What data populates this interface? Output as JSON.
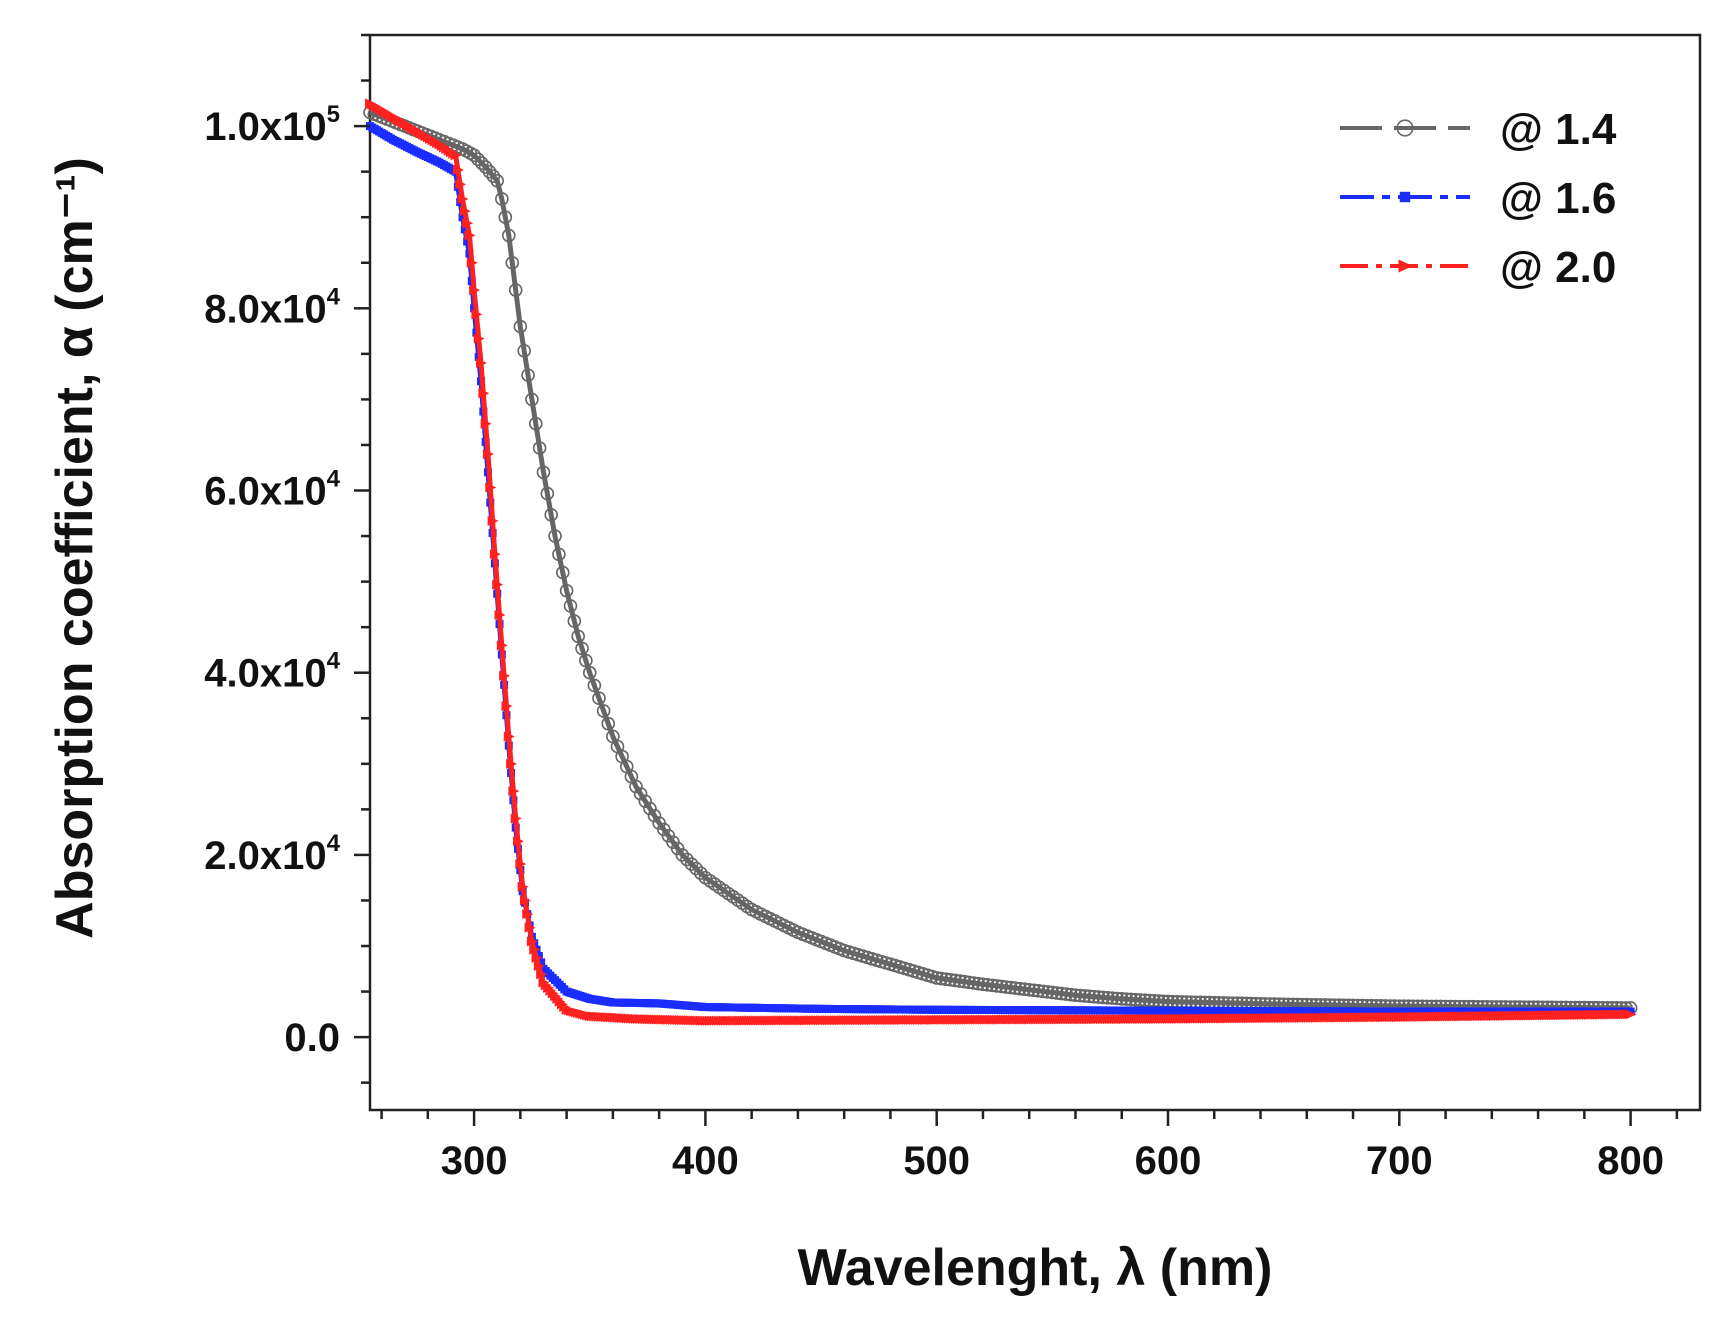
{
  "chart_data": {
    "type": "line",
    "title": "",
    "xlabel": "Wavelenght, λ (nm)",
    "ylabel": "Absorption coefficient, α (cm⁻¹)",
    "xlim": [
      255,
      830
    ],
    "ylim": [
      -8000,
      110000
    ],
    "x_ticks": [
      {
        "value": 300,
        "label": "300"
      },
      {
        "value": 400,
        "label": "400"
      },
      {
        "value": 500,
        "label": "500"
      },
      {
        "value": 600,
        "label": "600"
      },
      {
        "value": 700,
        "label": "700"
      },
      {
        "value": 800,
        "label": "800"
      }
    ],
    "y_ticks": [
      {
        "value": 0,
        "mantissa": "0.0",
        "exponent": ""
      },
      {
        "value": 20000,
        "mantissa": "2.0x10",
        "exponent": "4"
      },
      {
        "value": 40000,
        "mantissa": "4.0x10",
        "exponent": "4"
      },
      {
        "value": 60000,
        "mantissa": "6.0x10",
        "exponent": "4"
      },
      {
        "value": 80000,
        "mantissa": "8.0x10",
        "exponent": "4"
      },
      {
        "value": 100000,
        "mantissa": "1.0x10",
        "exponent": "5"
      }
    ],
    "legend_position": "top-right",
    "series": [
      {
        "name": "@ 1.4",
        "color": "#666666",
        "marker": "open-circle",
        "points": [
          [
            255,
            101500
          ],
          [
            270,
            100000
          ],
          [
            285,
            98500
          ],
          [
            295,
            97500
          ],
          [
            300,
            96800
          ],
          [
            305,
            95500
          ],
          [
            310,
            94000
          ],
          [
            312,
            92000
          ],
          [
            315,
            88000
          ],
          [
            318,
            82000
          ],
          [
            320,
            78000
          ],
          [
            325,
            70000
          ],
          [
            330,
            62000
          ],
          [
            335,
            55000
          ],
          [
            340,
            49000
          ],
          [
            345,
            44000
          ],
          [
            350,
            40000
          ],
          [
            360,
            33000
          ],
          [
            370,
            27500
          ],
          [
            380,
            23500
          ],
          [
            390,
            20000
          ],
          [
            400,
            17500
          ],
          [
            420,
            14000
          ],
          [
            440,
            11500
          ],
          [
            460,
            9500
          ],
          [
            480,
            8000
          ],
          [
            500,
            6500
          ],
          [
            520,
            5800
          ],
          [
            540,
            5200
          ],
          [
            560,
            4600
          ],
          [
            580,
            4200
          ],
          [
            600,
            3900
          ],
          [
            650,
            3600
          ],
          [
            700,
            3400
          ],
          [
            750,
            3300
          ],
          [
            800,
            3200
          ]
        ]
      },
      {
        "name": "@ 1.6",
        "color": "#1a2cff",
        "marker": "square",
        "points": [
          [
            255,
            100000
          ],
          [
            265,
            98500
          ],
          [
            275,
            97200
          ],
          [
            285,
            96000
          ],
          [
            292,
            95000
          ],
          [
            295,
            90000
          ],
          [
            298,
            86000
          ],
          [
            300,
            80000
          ],
          [
            303,
            72000
          ],
          [
            306,
            62000
          ],
          [
            309,
            52000
          ],
          [
            312,
            42000
          ],
          [
            315,
            32000
          ],
          [
            318,
            23000
          ],
          [
            321,
            16000
          ],
          [
            325,
            11000
          ],
          [
            330,
            7500
          ],
          [
            340,
            5000
          ],
          [
            350,
            4200
          ],
          [
            360,
            3800
          ],
          [
            380,
            3700
          ],
          [
            400,
            3300
          ],
          [
            450,
            3100
          ],
          [
            500,
            3000
          ],
          [
            600,
            2900
          ],
          [
            700,
            2800
          ],
          [
            800,
            2800
          ]
        ]
      },
      {
        "name": "@ 2.0",
        "color": "#ff2020",
        "marker": "triangle-right",
        "points": [
          [
            255,
            102500
          ],
          [
            265,
            101000
          ],
          [
            275,
            99500
          ],
          [
            285,
            98000
          ],
          [
            292,
            96800
          ],
          [
            295,
            92000
          ],
          [
            298,
            88000
          ],
          [
            300,
            82000
          ],
          [
            303,
            74000
          ],
          [
            306,
            64000
          ],
          [
            309,
            53000
          ],
          [
            312,
            43000
          ],
          [
            315,
            33000
          ],
          [
            318,
            24000
          ],
          [
            321,
            16500
          ],
          [
            325,
            10500
          ],
          [
            330,
            6000
          ],
          [
            340,
            3000
          ],
          [
            350,
            2300
          ],
          [
            370,
            2000
          ],
          [
            400,
            1800
          ],
          [
            500,
            1900
          ],
          [
            600,
            2000
          ],
          [
            700,
            2200
          ],
          [
            800,
            2500
          ]
        ]
      }
    ]
  }
}
